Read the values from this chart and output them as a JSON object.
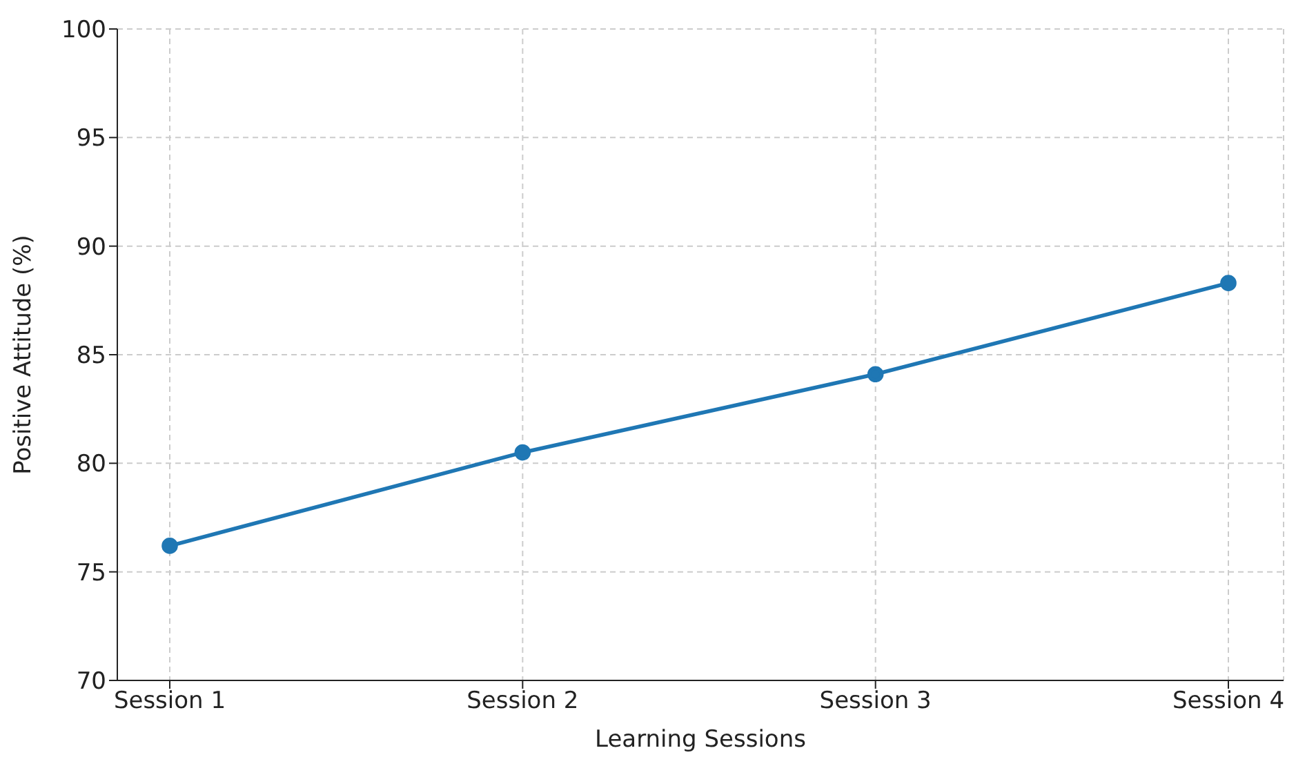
{
  "chart_data": {
    "type": "line",
    "xlabel": "Learning Sessions",
    "ylabel": "Positive Attitude (%)",
    "categories": [
      "Session 1",
      "Session 2",
      "Session 3",
      "Session 4"
    ],
    "series": [
      {
        "color": "#1f77b4",
        "values": [
          76.2,
          80.5,
          84.1,
          88.3
        ]
      }
    ],
    "ylim": [
      70,
      100
    ],
    "yticks": [
      70,
      75,
      80,
      85,
      90,
      95,
      100
    ],
    "grid": true,
    "marker": "circle",
    "line_style": "solid"
  }
}
